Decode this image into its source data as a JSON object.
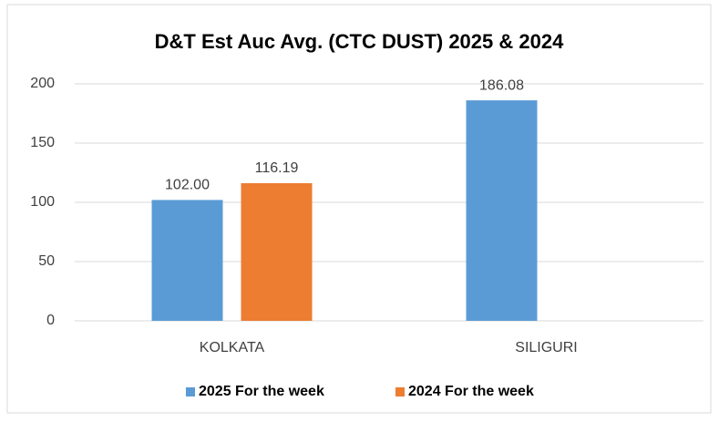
{
  "chart_data": {
    "type": "bar",
    "title": "D&T Est Auc Avg. (CTC DUST) 2025 & 2024",
    "categories": [
      "KOLKATA",
      "SILIGURI"
    ],
    "series": [
      {
        "name": "2025 For the week",
        "color": "#5b9bd5",
        "values": [
          102.0,
          186.08
        ],
        "value_labels": [
          "102.00",
          "186.08"
        ]
      },
      {
        "name": "2024 For the week",
        "color": "#ed7d31",
        "values": [
          116.19,
          null
        ],
        "value_labels": [
          "116.19",
          null
        ]
      }
    ],
    "ylim": [
      0,
      200
    ],
    "yticks": [
      0,
      50,
      100,
      150,
      200
    ],
    "grid": true,
    "legend": "bottom"
  }
}
